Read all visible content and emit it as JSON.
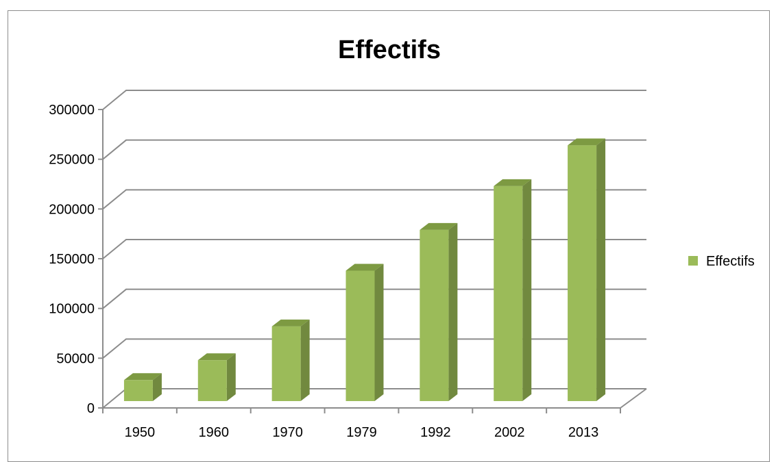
{
  "chart_data": {
    "type": "bar",
    "style": "3d-column",
    "title": "Effectifs",
    "xlabel": "",
    "ylabel": "",
    "categories": [
      "1950",
      "1960",
      "1970",
      "1979",
      "1992",
      "2002",
      "2013"
    ],
    "series": [
      {
        "name": "Effectifs",
        "values": [
          28000,
          48000,
          82000,
          138000,
          179000,
          223000,
          264000
        ],
        "color": "#9bbb59",
        "side_color": "#71893f",
        "top_color": "#7d9a42"
      }
    ],
    "ylim": [
      0,
      300000
    ],
    "yticks": [
      "0",
      "50000",
      "100000",
      "150000",
      "200000",
      "250000",
      "300000"
    ],
    "grid": true,
    "legend_position": "right"
  }
}
